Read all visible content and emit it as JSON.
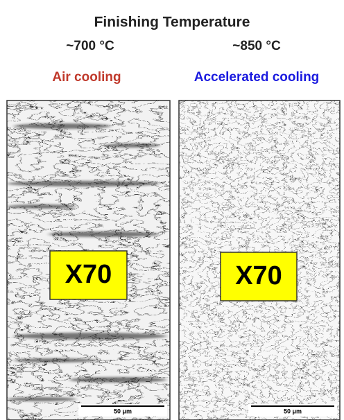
{
  "header": {
    "title": "Finishing Temperature",
    "temperatures": [
      "~700 °C",
      "~850 °C"
    ]
  },
  "panels": [
    {
      "cooling": "Air cooling",
      "label": "X70",
      "scale": "50 μm"
    },
    {
      "cooling": "Accelerated cooling",
      "label": "X70",
      "scale": "50 μm"
    }
  ]
}
